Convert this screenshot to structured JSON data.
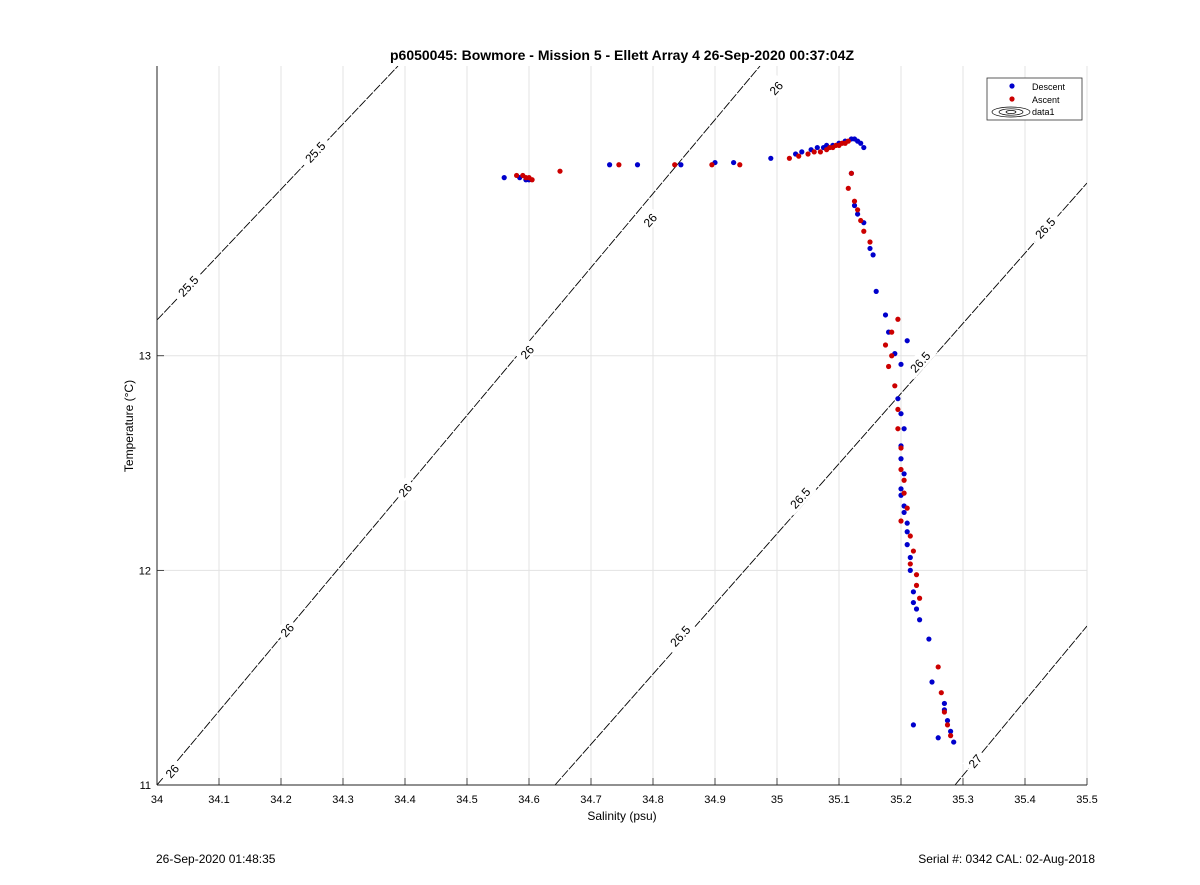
{
  "chart_data": {
    "type": "scatter",
    "title": "p6050045: Bowmore - Mission 5 - Ellett Array 4 26-Sep-2020 00:37:04Z",
    "xlabel": "Salinity (psu)",
    "ylabel": "Temperature (°C)",
    "xlim": [
      34.0,
      35.5
    ],
    "ylim": [
      11.0,
      14.35
    ],
    "x_ticks": [
      "34",
      "34.1",
      "34.2",
      "34.3",
      "34.4",
      "34.5",
      "34.6",
      "34.7",
      "34.8",
      "34.9",
      "35",
      "35.1",
      "35.2",
      "35.3",
      "35.4",
      "35.5"
    ],
    "y_ticks": [
      "11",
      "12",
      "13"
    ],
    "grid": true,
    "legend": {
      "position": "top-right",
      "entries": [
        "Descent",
        "Ascent",
        "data1"
      ]
    },
    "contour_labels": [
      "25.5",
      "25.5",
      "26",
      "26",
      "26",
      "26",
      "26",
      "26",
      "26.5",
      "26.5",
      "26.5",
      "26.5",
      "27"
    ],
    "series": [
      {
        "name": "Descent",
        "color": "#0000cc",
        "x": [
          34.56,
          34.585,
          34.595,
          34.6,
          34.73,
          34.775,
          34.845,
          34.9,
          34.93,
          34.99,
          35.03,
          35.04,
          35.055,
          35.065,
          35.075,
          35.08,
          35.09,
          35.1,
          35.11,
          35.12,
          35.125,
          35.13,
          35.135,
          35.14,
          35.12,
          35.125,
          35.13,
          35.14,
          35.15,
          35.155,
          35.16,
          35.175,
          35.18,
          35.19,
          35.21,
          35.2,
          35.195,
          35.2,
          35.205,
          35.2,
          35.2,
          35.205,
          35.2,
          35.205,
          35.21,
          35.2,
          35.205,
          35.21,
          35.21,
          35.215,
          35.215,
          35.22,
          35.22,
          35.225,
          35.23,
          35.245,
          35.25,
          35.27,
          35.275,
          35.28,
          35.285,
          35.22,
          35.26,
          35.27
        ],
        "y": [
          13.83,
          13.83,
          13.82,
          13.82,
          13.89,
          13.89,
          13.89,
          13.9,
          13.9,
          13.92,
          13.94,
          13.95,
          13.96,
          13.97,
          13.97,
          13.98,
          13.98,
          13.99,
          14.0,
          14.01,
          14.01,
          14.0,
          13.99,
          13.97,
          13.85,
          13.7,
          13.66,
          13.62,
          13.5,
          13.47,
          13.3,
          13.19,
          13.11,
          13.01,
          13.07,
          12.96,
          12.8,
          12.73,
          12.66,
          12.58,
          12.52,
          12.45,
          12.38,
          12.3,
          12.22,
          12.35,
          12.27,
          12.18,
          12.12,
          12.06,
          12.0,
          11.9,
          11.85,
          11.82,
          11.77,
          11.68,
          11.48,
          11.35,
          11.3,
          11.25,
          11.2,
          11.28,
          11.22,
          11.38
        ]
      },
      {
        "name": "Ascent",
        "color": "#cc0000",
        "x": [
          34.58,
          34.59,
          34.595,
          34.6,
          34.605,
          34.65,
          34.745,
          34.835,
          34.895,
          34.94,
          35.02,
          35.035,
          35.05,
          35.06,
          35.07,
          35.08,
          35.085,
          35.09,
          35.095,
          35.1,
          35.105,
          35.11,
          35.115,
          35.12,
          35.115,
          35.125,
          35.13,
          35.135,
          35.14,
          35.15,
          35.195,
          35.185,
          35.175,
          35.18,
          35.19,
          35.195,
          35.195,
          35.2,
          35.2,
          35.205,
          35.205,
          35.21,
          35.2,
          35.215,
          35.22,
          35.215,
          35.225,
          35.225,
          35.23,
          35.26,
          35.265,
          35.27,
          35.275,
          35.28,
          35.185
        ],
        "y": [
          13.84,
          13.84,
          13.83,
          13.83,
          13.82,
          13.86,
          13.89,
          13.89,
          13.89,
          13.89,
          13.92,
          13.93,
          13.94,
          13.95,
          13.95,
          13.96,
          13.97,
          13.97,
          13.98,
          13.98,
          13.99,
          13.99,
          14.0,
          13.85,
          13.78,
          13.72,
          13.68,
          13.63,
          13.58,
          13.53,
          13.17,
          13.11,
          13.05,
          12.95,
          12.86,
          12.75,
          12.66,
          12.57,
          12.47,
          12.42,
          12.36,
          12.29,
          12.23,
          12.16,
          12.09,
          12.03,
          11.98,
          11.93,
          11.87,
          11.55,
          11.43,
          11.34,
          11.28,
          11.23,
          13.0
        ]
      }
    ]
  },
  "footer": {
    "left": "26-Sep-2020 01:48:35",
    "right": "Serial #: 0342  CAL: 02-Aug-2018"
  }
}
